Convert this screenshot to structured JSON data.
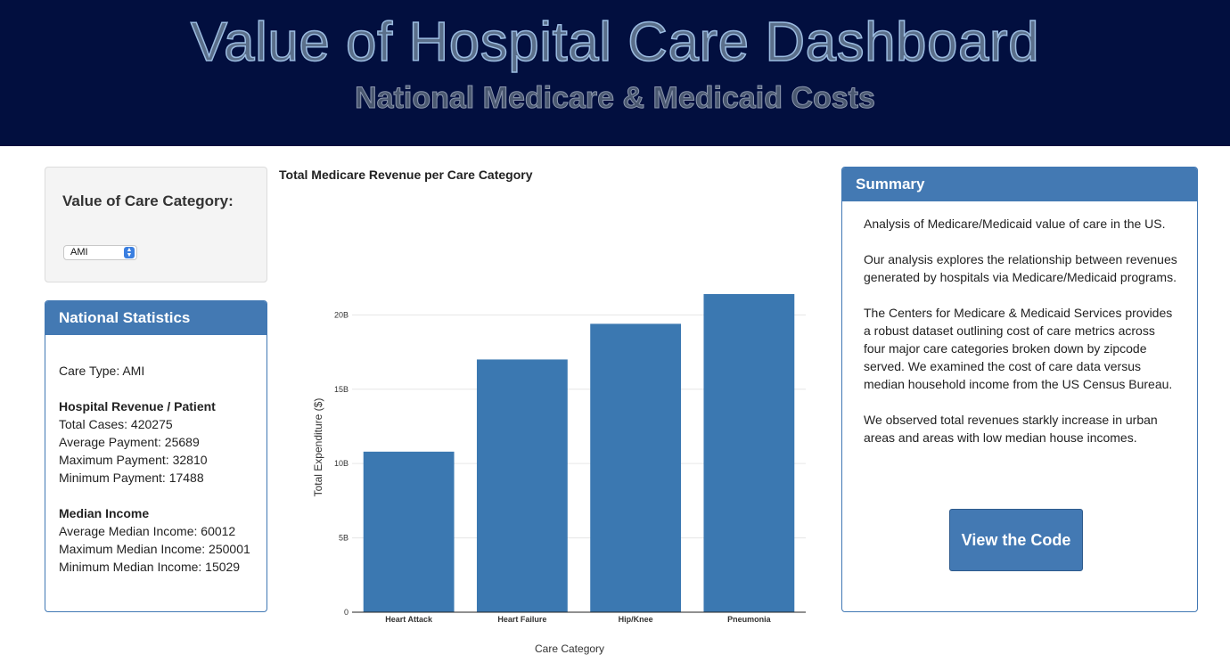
{
  "header": {
    "title": "Value of Hospital Care Dashboard",
    "subtitle": "National Medicare & Medicaid Costs"
  },
  "filter": {
    "label": "Value of Care Category:",
    "selected": "AMI"
  },
  "stats": {
    "title": "National Statistics",
    "care_type": "Care Type: AMI",
    "revenue_heading": "Hospital Revenue / Patient",
    "total_cases": "Total Cases: 420275",
    "avg_payment": "Average Payment: 25689",
    "max_payment": "Maximum Payment: 32810",
    "min_payment": "Minimum Payment: 17488",
    "income_heading": "Median Income",
    "avg_income": "Average Median Income: 60012",
    "max_income": "Maximum Median Income: 250001",
    "min_income": "Minimum Median Income: 15029"
  },
  "summary": {
    "title": "Summary",
    "p1": "Analysis of Medicare/Medicaid value of care in the US.",
    "p2": "Our analysis explores the relationship between revenues generated by hospitals via Medicare/Medicaid programs.",
    "p3": "The Centers for Medicare & Medicaid Services provides a robust dataset outlining cost of care metrics across four major care categories broken down by zipcode served. We examined the cost of care data versus median household income from the US Census Bureau.",
    "p4": "We observed total revenues starkly increase in urban areas and areas with low median house incomes.",
    "button": "View the Code"
  },
  "chart_data": {
    "type": "bar",
    "title": "Total Medicare Revenue per Care Category",
    "xlabel": "Care Category",
    "ylabel": "Total Expenditure ($)",
    "categories": [
      "Heart Attack",
      "Heart Failure",
      "Hip/Knee",
      "Pneumonia"
    ],
    "values": [
      10.8,
      17.0,
      19.4,
      21.4
    ],
    "unit": "B",
    "ylim": [
      0,
      22
    ],
    "yticks": [
      0,
      5,
      10,
      15,
      20
    ],
    "ytick_labels": [
      "0",
      "5B",
      "10B",
      "15B",
      "20B"
    ],
    "grid": true,
    "color": "#3b78b1"
  }
}
